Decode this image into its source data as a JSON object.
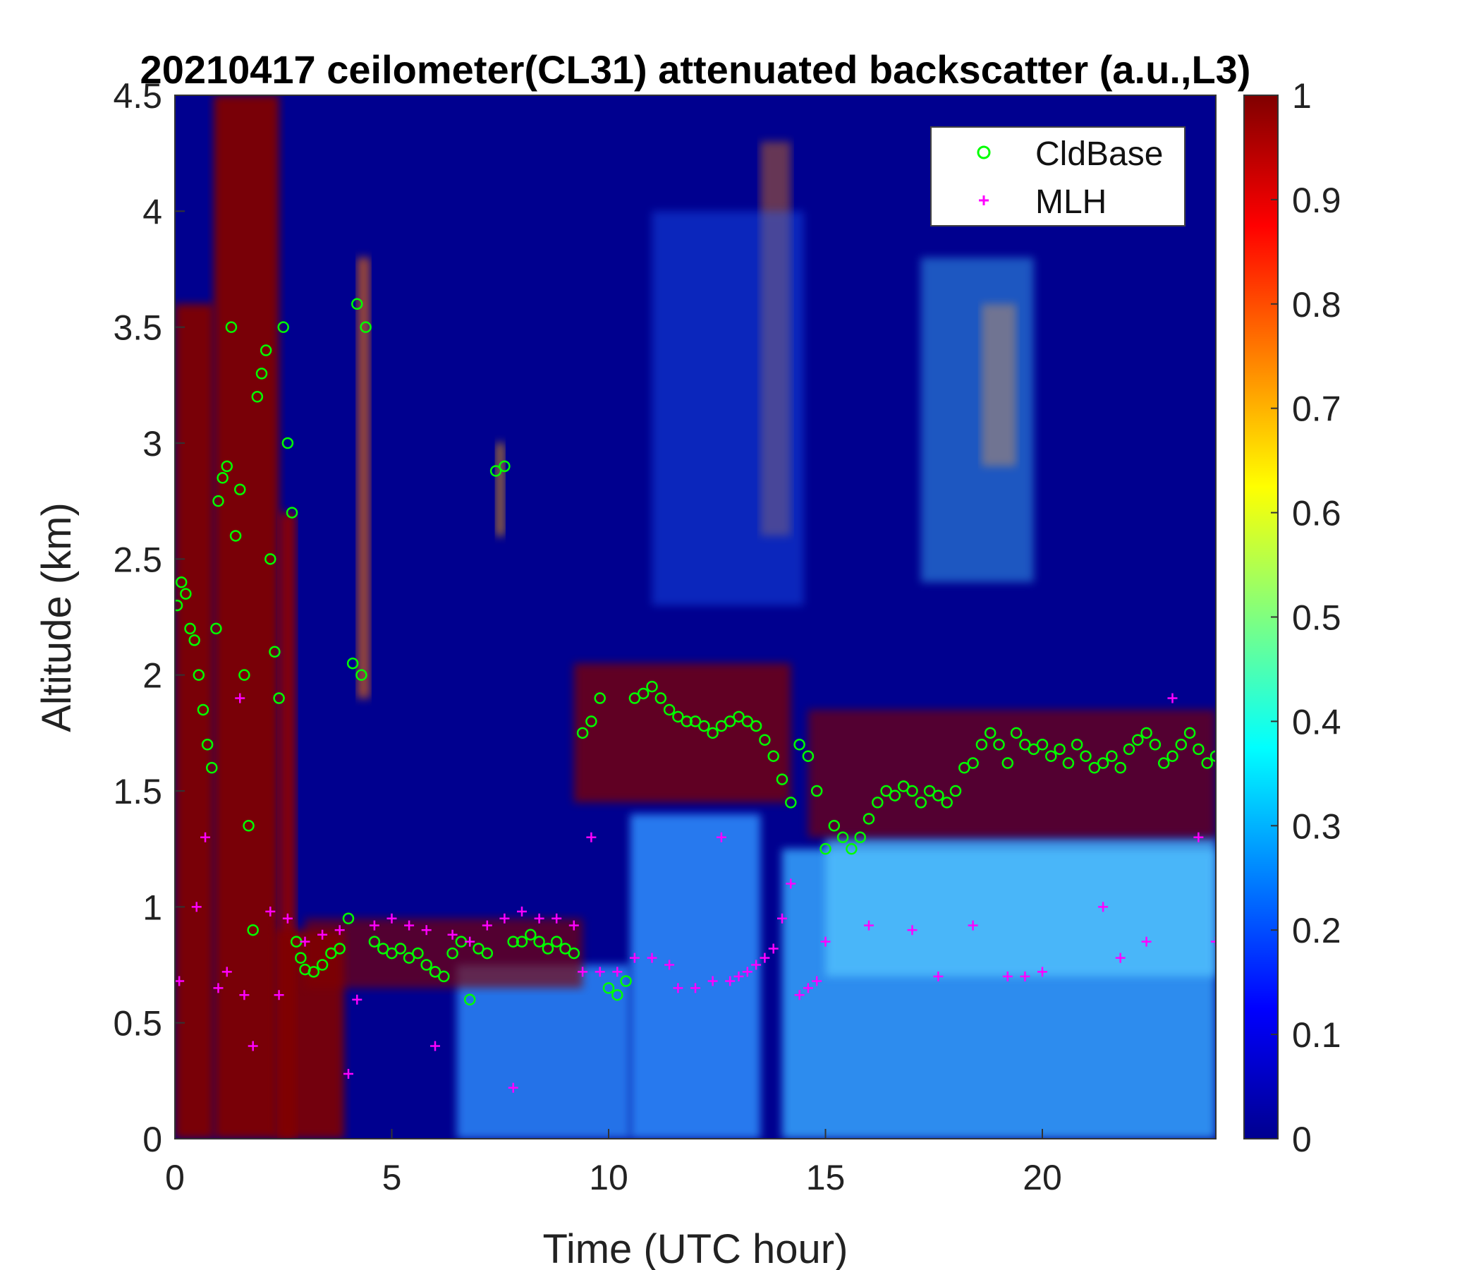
{
  "chart_data": {
    "type": "heatmap",
    "title": "20210417 ceilometer(CL31) attenuated backscatter (a.u.,L3)",
    "xlabel": "Time (UTC hour)",
    "ylabel": "Altitude (km)",
    "xlim": [
      0,
      24
    ],
    "ylim": [
      0,
      4.5
    ],
    "x_ticks": [
      0,
      5,
      10,
      15,
      20
    ],
    "y_ticks": [
      0,
      0.5,
      1,
      1.5,
      2,
      2.5,
      3,
      3.5,
      4,
      4.5
    ],
    "colorbar": {
      "colormap": "jet",
      "clim": [
        0,
        1
      ],
      "ticks": [
        0,
        0.1,
        0.2,
        0.3,
        0.4,
        0.5,
        0.6,
        0.7,
        0.8,
        0.9,
        1
      ]
    },
    "legend": {
      "placement": "top-right",
      "entries": [
        {
          "label": "CldBase",
          "marker": "circle",
          "color": "#00ff00"
        },
        {
          "label": "MLH",
          "marker": "plus",
          "color": "#ff00ff"
        }
      ]
    },
    "colors": {
      "background_field": "#00008f",
      "cldbase": "#00ff00",
      "mlh": "#ff00ff"
    },
    "series": [
      {
        "name": "CldBase",
        "points": [
          [
            0.05,
            2.3
          ],
          [
            0.15,
            2.4
          ],
          [
            0.25,
            2.35
          ],
          [
            0.35,
            2.2
          ],
          [
            0.45,
            2.15
          ],
          [
            0.55,
            2.0
          ],
          [
            0.65,
            1.85
          ],
          [
            0.75,
            1.7
          ],
          [
            0.85,
            1.6
          ],
          [
            0.95,
            2.2
          ],
          [
            1.0,
            2.75
          ],
          [
            1.1,
            2.85
          ],
          [
            1.2,
            2.9
          ],
          [
            1.3,
            3.5
          ],
          [
            1.4,
            2.6
          ],
          [
            1.5,
            2.8
          ],
          [
            1.6,
            2.0
          ],
          [
            1.7,
            1.35
          ],
          [
            1.8,
            0.9
          ],
          [
            1.9,
            3.2
          ],
          [
            2.0,
            3.3
          ],
          [
            2.1,
            3.4
          ],
          [
            2.2,
            2.5
          ],
          [
            2.3,
            2.1
          ],
          [
            2.4,
            1.9
          ],
          [
            2.5,
            3.5
          ],
          [
            2.6,
            3.0
          ],
          [
            2.7,
            2.7
          ],
          [
            2.8,
            0.85
          ],
          [
            2.9,
            0.78
          ],
          [
            3.0,
            0.73
          ],
          [
            3.2,
            0.72
          ],
          [
            3.4,
            0.75
          ],
          [
            3.6,
            0.8
          ],
          [
            3.8,
            0.82
          ],
          [
            4.0,
            0.95
          ],
          [
            4.1,
            2.05
          ],
          [
            4.2,
            3.6
          ],
          [
            4.3,
            2.0
          ],
          [
            4.4,
            3.5
          ],
          [
            4.6,
            0.85
          ],
          [
            4.8,
            0.82
          ],
          [
            5.0,
            0.8
          ],
          [
            5.2,
            0.82
          ],
          [
            5.4,
            0.78
          ],
          [
            5.6,
            0.8
          ],
          [
            5.8,
            0.75
          ],
          [
            6.0,
            0.72
          ],
          [
            6.2,
            0.7
          ],
          [
            6.4,
            0.8
          ],
          [
            6.6,
            0.85
          ],
          [
            6.8,
            0.6
          ],
          [
            7.0,
            0.82
          ],
          [
            7.2,
            0.8
          ],
          [
            7.4,
            2.88
          ],
          [
            7.6,
            2.9
          ],
          [
            7.8,
            0.85
          ],
          [
            8.0,
            0.85
          ],
          [
            8.2,
            0.88
          ],
          [
            8.4,
            0.85
          ],
          [
            8.6,
            0.82
          ],
          [
            8.8,
            0.85
          ],
          [
            9.0,
            0.82
          ],
          [
            9.2,
            0.8
          ],
          [
            9.4,
            1.75
          ],
          [
            9.6,
            1.8
          ],
          [
            9.8,
            1.9
          ],
          [
            10.0,
            0.65
          ],
          [
            10.2,
            0.62
          ],
          [
            10.4,
            0.68
          ],
          [
            10.6,
            1.9
          ],
          [
            10.8,
            1.92
          ],
          [
            11.0,
            1.95
          ],
          [
            11.2,
            1.9
          ],
          [
            11.4,
            1.85
          ],
          [
            11.6,
            1.82
          ],
          [
            11.8,
            1.8
          ],
          [
            12.0,
            1.8
          ],
          [
            12.2,
            1.78
          ],
          [
            12.4,
            1.75
          ],
          [
            12.6,
            1.78
          ],
          [
            12.8,
            1.8
          ],
          [
            13.0,
            1.82
          ],
          [
            13.2,
            1.8
          ],
          [
            13.4,
            1.78
          ],
          [
            13.6,
            1.72
          ],
          [
            13.8,
            1.65
          ],
          [
            14.0,
            1.55
          ],
          [
            14.2,
            1.45
          ],
          [
            14.4,
            1.7
          ],
          [
            14.6,
            1.65
          ],
          [
            14.8,
            1.5
          ],
          [
            15.0,
            1.25
          ],
          [
            15.2,
            1.35
          ],
          [
            15.4,
            1.3
          ],
          [
            15.6,
            1.25
          ],
          [
            15.8,
            1.3
          ],
          [
            16.0,
            1.38
          ],
          [
            16.2,
            1.45
          ],
          [
            16.4,
            1.5
          ],
          [
            16.6,
            1.48
          ],
          [
            16.8,
            1.52
          ],
          [
            17.0,
            1.5
          ],
          [
            17.2,
            1.45
          ],
          [
            17.4,
            1.5
          ],
          [
            17.6,
            1.48
          ],
          [
            17.8,
            1.45
          ],
          [
            18.0,
            1.5
          ],
          [
            18.2,
            1.6
          ],
          [
            18.4,
            1.62
          ],
          [
            18.6,
            1.7
          ],
          [
            18.8,
            1.75
          ],
          [
            19.0,
            1.7
          ],
          [
            19.2,
            1.62
          ],
          [
            19.4,
            1.75
          ],
          [
            19.6,
            1.7
          ],
          [
            19.8,
            1.68
          ],
          [
            20.0,
            1.7
          ],
          [
            20.2,
            1.65
          ],
          [
            20.4,
            1.68
          ],
          [
            20.6,
            1.62
          ],
          [
            20.8,
            1.7
          ],
          [
            21.0,
            1.65
          ],
          [
            21.2,
            1.6
          ],
          [
            21.4,
            1.62
          ],
          [
            21.6,
            1.65
          ],
          [
            21.8,
            1.6
          ],
          [
            22.0,
            1.68
          ],
          [
            22.2,
            1.72
          ],
          [
            22.4,
            1.75
          ],
          [
            22.6,
            1.7
          ],
          [
            22.8,
            1.62
          ],
          [
            23.0,
            1.65
          ],
          [
            23.2,
            1.7
          ],
          [
            23.4,
            1.75
          ],
          [
            23.6,
            1.68
          ],
          [
            23.8,
            1.62
          ],
          [
            24.0,
            1.65
          ]
        ]
      },
      {
        "name": "MLH",
        "points": [
          [
            0.1,
            0.68
          ],
          [
            0.5,
            1.0
          ],
          [
            0.7,
            1.3
          ],
          [
            1.0,
            0.65
          ],
          [
            1.2,
            0.72
          ],
          [
            1.5,
            1.9
          ],
          [
            1.6,
            0.62
          ],
          [
            1.8,
            0.4
          ],
          [
            2.2,
            0.98
          ],
          [
            2.4,
            0.62
          ],
          [
            2.6,
            0.95
          ],
          [
            3.0,
            0.85
          ],
          [
            3.4,
            0.88
          ],
          [
            3.8,
            0.9
          ],
          [
            4.0,
            0.28
          ],
          [
            4.2,
            0.6
          ],
          [
            4.6,
            0.92
          ],
          [
            5.0,
            0.95
          ],
          [
            5.4,
            0.92
          ],
          [
            5.8,
            0.9
          ],
          [
            6.0,
            0.4
          ],
          [
            6.4,
            0.88
          ],
          [
            6.8,
            0.85
          ],
          [
            7.2,
            0.92
          ],
          [
            7.6,
            0.95
          ],
          [
            7.8,
            0.22
          ],
          [
            8.0,
            0.98
          ],
          [
            8.4,
            0.95
          ],
          [
            8.8,
            0.95
          ],
          [
            9.2,
            0.92
          ],
          [
            9.4,
            0.72
          ],
          [
            9.6,
            1.3
          ],
          [
            9.8,
            0.72
          ],
          [
            10.2,
            0.72
          ],
          [
            10.6,
            0.78
          ],
          [
            11.0,
            0.78
          ],
          [
            11.4,
            0.75
          ],
          [
            11.6,
            0.65
          ],
          [
            12.0,
            0.65
          ],
          [
            12.4,
            0.68
          ],
          [
            12.6,
            1.3
          ],
          [
            12.8,
            0.68
          ],
          [
            13.0,
            0.7
          ],
          [
            13.2,
            0.72
          ],
          [
            13.4,
            0.75
          ],
          [
            13.6,
            0.78
          ],
          [
            13.8,
            0.82
          ],
          [
            14.0,
            0.95
          ],
          [
            14.2,
            1.1
          ],
          [
            14.4,
            0.62
          ],
          [
            14.6,
            0.65
          ],
          [
            14.8,
            0.68
          ],
          [
            15.0,
            0.85
          ],
          [
            16.0,
            0.92
          ],
          [
            17.0,
            0.9
          ],
          [
            17.6,
            0.7
          ],
          [
            18.4,
            0.92
          ],
          [
            19.2,
            0.7
          ],
          [
            19.6,
            0.7
          ],
          [
            20.0,
            0.72
          ],
          [
            21.4,
            1.0
          ],
          [
            21.8,
            0.78
          ],
          [
            22.4,
            0.85
          ],
          [
            23.0,
            1.9
          ],
          [
            23.6,
            1.3
          ],
          [
            24.0,
            0.85
          ]
        ]
      }
    ]
  }
}
